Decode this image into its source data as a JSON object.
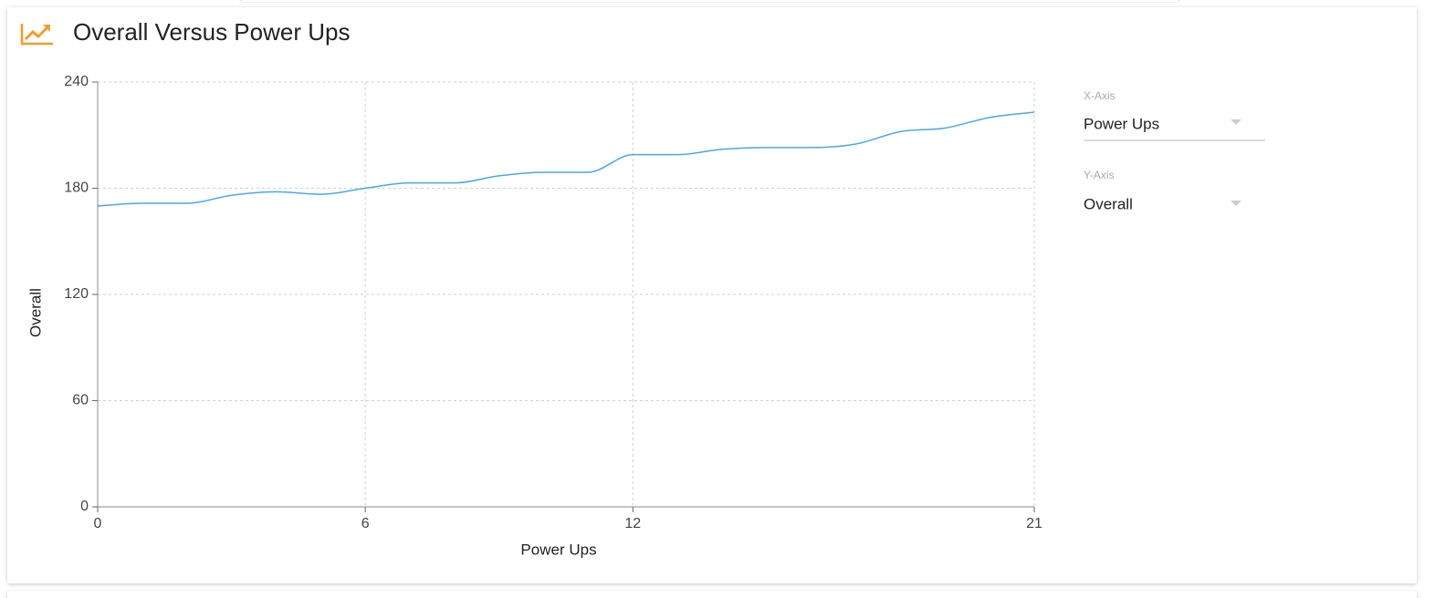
{
  "chart_data": {
    "type": "line",
    "title": "Overall Versus Power Ups",
    "x_label": "Power Ups",
    "y_label": "Overall",
    "x": [
      0,
      1,
      2,
      3,
      4,
      5,
      6,
      7,
      8,
      9,
      10,
      11,
      12,
      13,
      14,
      15,
      16,
      17,
      18,
      19,
      20,
      21
    ],
    "series": [
      {
        "name": "Overall",
        "color": "#4da6e8",
        "values": [
          170,
          171.5,
          171.5,
          176,
          178,
          176.6,
          180,
          183,
          183,
          187,
          189,
          189,
          199,
          199,
          202,
          203,
          203,
          205,
          212,
          214,
          220,
          223
        ]
      }
    ],
    "xlim": [
      0,
      21
    ],
    "xticks": [
      0,
      6,
      12,
      21
    ],
    "ylim": [
      0,
      240
    ],
    "yticks": [
      0,
      60,
      120,
      180,
      240
    ],
    "grid": true
  },
  "controls": {
    "x_axis": {
      "label": "X-Axis",
      "value": "Power Ups"
    },
    "y_axis": {
      "label": "Y-Axis",
      "value": "Overall"
    }
  }
}
